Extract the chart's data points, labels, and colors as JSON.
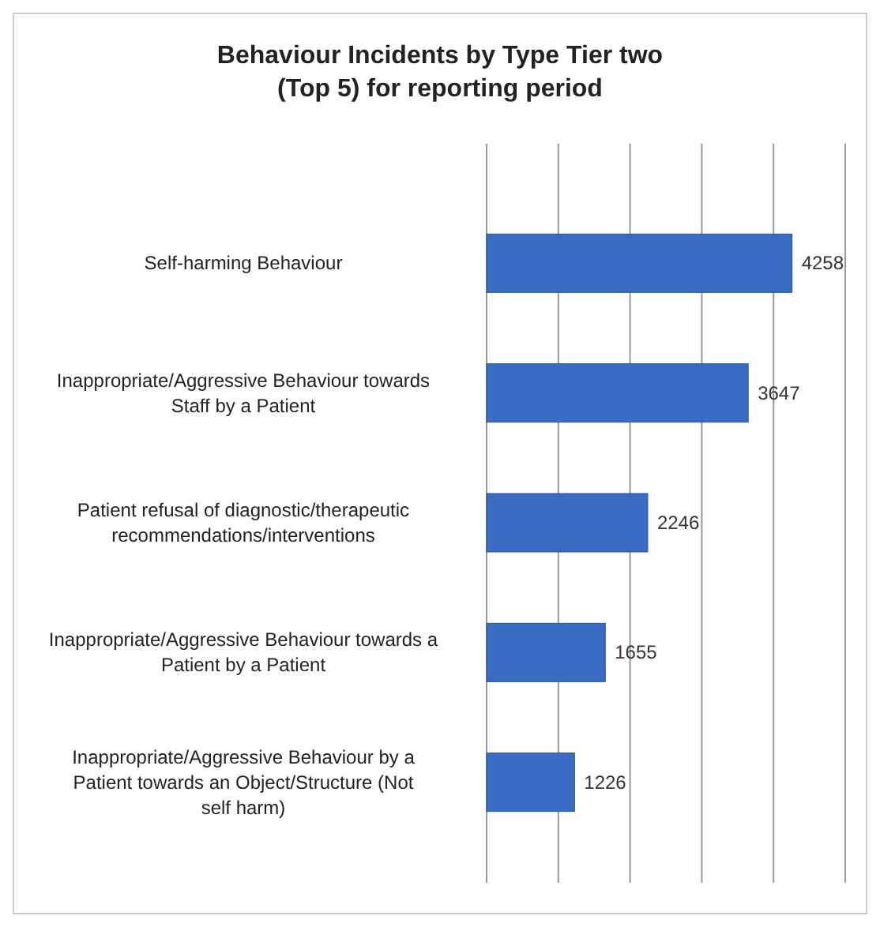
{
  "chart_data": {
    "type": "bar",
    "orientation": "horizontal",
    "title": "Behaviour Incidents by Type Tier two (Top 5) for reporting period",
    "categories": [
      "Self-harming Behaviour",
      "Inappropriate/Aggressive Behaviour towards Staff by a Patient",
      "Patient refusal of diagnostic/therapeutic recommendations/interventions",
      "Inappropriate/Aggressive Behaviour towards a Patient by a Patient",
      "Inappropriate/Aggressive Behaviour by a Patient towards an Object/Structure (Not self harm)"
    ],
    "values": [
      4258,
      3647,
      2246,
      1655,
      1226
    ],
    "color": "#3a6cc4",
    "data_labels": true,
    "grid": "x",
    "tick_labels": "y",
    "xlim": [
      0,
      5000
    ],
    "xticks": [
      {
        "value": 0,
        "label": null
      },
      {
        "value": 1000,
        "label": null
      },
      {
        "value": 2000,
        "label": null
      },
      {
        "value": 3000,
        "label": null
      },
      {
        "value": 4000,
        "label": null
      },
      {
        "value": 5000,
        "label": null
      }
    ]
  }
}
